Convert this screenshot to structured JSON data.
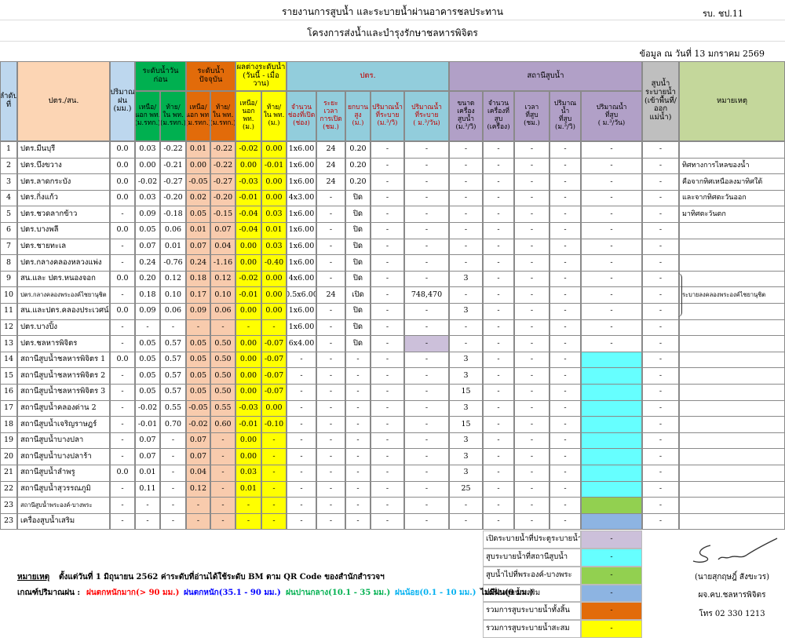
{
  "header": {
    "title": "รายงานการสูบน้ำ และระบายน้ำผ่านอาคารชลประทาน",
    "form_code": "รบ. ชป.11",
    "subtitle": "โครงการส่งน้ำและบำรุงรักษาชลหารพิจิตร",
    "date": "ข้อมูล ณ วันที่ 13 มกราคม 2569"
  },
  "table": {
    "header": [
      {
        "label": "ลำดับ\nที่"
      },
      {
        "label": "ปตร./สน."
      },
      {
        "label": "ปริมาณ\nฝน\n(มม.)"
      },
      {
        "label": "ระดับน้ำวันก่อน",
        "columns": [
          "เหนือ/\nนอก พท.\n(ม.รทก.)",
          "ท้าย/\nใน พท.\n(ม.รทก.)"
        ]
      },
      {
        "label": "ระดับน้ำปัจจุบัน",
        "columns": [
          "เหนือ/\nนอก พท.\n(ม.รทก.)",
          "ท้าย/\nใน พท.\n(ม.รทก.)"
        ]
      },
      {
        "label": "ผลต่างระดับน้ำ\n(วันนี้ - เมื่อวาน)",
        "columns": [
          "เหนือ/\nนอก พท.\n(ม.)",
          "ท้าย/\nใน พท.\n(ม.)"
        ]
      },
      {
        "label": "ปตร.",
        "columns": [
          "จำนวน\nช่องที่เปิด\n(ช่อง)",
          "ระยะเวลา\nการเปิด\n(ชม.)",
          "ยกบาน\nสูง\n(ม.)",
          "ปริมาณน้ำ\nที่ระบาย\n(ม.³/วิ)",
          "ปริมาณน้ำ\nที่ระบาย\n( ม.³/วัน)"
        ]
      },
      {
        "label": "สถานีสูบน้ำ",
        "columns": [
          "ขนาดเครื่อง\nสูบน้ำ\n(ม.³/วิ)",
          "จำนวน\nเครื่องที่สูบ\n(เครื่อง)",
          "เวลา\nที่สูบ\n(ชม.)",
          "ปริมาณน้ำ\nที่สูบ\n(ม.³/วิ)",
          "ปริมาณน้ำ\nที่สูบ\n( ม.³/วัน)"
        ]
      },
      {
        "label": "สูบน้ำ\nระบายน้ำ\n(เข้าพื้นที่/\nออกแม่น้ำ)"
      },
      {
        "label": "หมายเหตุ"
      }
    ],
    "rows": [
      [
        "1",
        "ปตร.มีนบุรี",
        "0.0",
        "0.03",
        "-0.22",
        "0.01",
        "-0.22",
        "-0.02",
        "0.00",
        "1x6.00",
        "24",
        "0.20",
        "-",
        "-",
        "-",
        "-",
        "-",
        "-",
        "-",
        "-",
        null
      ],
      [
        "2",
        "ปตร.บึงขวาง",
        "0.0",
        "0.00",
        "-0.21",
        "0.00",
        "-0.22",
        "0.00",
        "-0.01",
        "1x6.00",
        "24",
        "0.20",
        "-",
        "-",
        "-",
        "-",
        "-",
        "-",
        "-",
        "-",
        "ทิศทางการไหลของน้ำ"
      ],
      [
        "3",
        "ปตร.ลาดกระบัง",
        "0.0",
        "-0.02",
        "-0.27",
        "-0.05",
        "-0.27",
        "-0.03",
        "0.00",
        "1x6.00",
        "24",
        "0.20",
        "-",
        "-",
        "-",
        "-",
        "-",
        "-",
        "-",
        "-",
        "คือจากทิศเหนือลงมาทิศใต้"
      ],
      [
        "4",
        "ปตร.กิ่งแก้ว",
        "0.0",
        "0.03",
        "-0.20",
        "0.02",
        "-0.20",
        "-0.01",
        "0.00",
        "4x3.00",
        "-",
        "ปิด",
        "-",
        "-",
        "-",
        "-",
        "-",
        "-",
        "-",
        "-",
        "และจากทิศตะวันออก"
      ],
      [
        "5",
        "ปตร.ชวดลากข้าว",
        "-",
        "0.09",
        "-0.18",
        "0.05",
        "-0.15",
        "-0.04",
        "0.03",
        "1x6.00",
        "-",
        "ปิด",
        "-",
        "-",
        "-",
        "-",
        "-",
        "-",
        "-",
        "-",
        "มาทิศตะวันตก"
      ],
      [
        "6",
        "ปตร.บางพลี",
        "0.0",
        "0.05",
        "0.06",
        "0.01",
        "0.07",
        "-0.04",
        "0.01",
        "1x6.00",
        "-",
        "ปิด",
        "-",
        "-",
        "-",
        "-",
        "-",
        "-",
        "-",
        "-",
        null
      ],
      [
        "7",
        "ปตร.ชายทะเล",
        "-",
        "0.07",
        "0.01",
        "0.07",
        "0.04",
        "0.00",
        "0.03",
        "1x6.00",
        "-",
        "ปิด",
        "-",
        "-",
        "-",
        "-",
        "-",
        "-",
        "-",
        "-",
        null
      ],
      [
        "8",
        "ปตร.กลางคลองหลวงแพ่ง",
        "-",
        "0.24",
        "-0.76",
        "0.24",
        "-1.16",
        "0.00",
        "-0.40",
        "1x6.00",
        "-",
        "ปิด",
        "-",
        "-",
        "-",
        "-",
        "-",
        "-",
        "-",
        "-",
        null
      ],
      [
        "9",
        "สน.และ ปตร.หนองจอก",
        "0.0",
        "0.20",
        "0.12",
        "0.18",
        "0.12",
        "-0.02",
        "0.00",
        "4x6.00",
        "-",
        "ปิด",
        "-",
        "-",
        "3",
        "-",
        "-",
        "-",
        "-",
        "-",
        null
      ],
      [
        "10",
        "ปตร.กลางคลองพระองค์ไชยานุชิต",
        "-",
        "0.18",
        "0.10",
        "0.17",
        "0.10",
        "-0.01",
        "0.00",
        "0.5x6.00",
        "24",
        "เปิด",
        "-",
        "748,470",
        "-",
        "-",
        "-",
        "-",
        "-",
        "-",
        "ระบายลงคลองพระองค์ไชยานุชิต"
      ],
      [
        "11",
        "สน.และปตร.คลองประเวศน์ฯ",
        "0.0",
        "0.09",
        "0.06",
        "0.09",
        "0.06",
        "0.00",
        "0.00",
        "1x6.00",
        "-",
        "ปิด",
        "-",
        "-",
        "3",
        "-",
        "-",
        "-",
        "-",
        "-",
        null
      ],
      [
        "12",
        "ปตร.บางปิ้ง",
        "-",
        "-",
        "-",
        "-",
        "-",
        "-",
        "-",
        "1x6.00",
        "-",
        "ปิด",
        "-",
        "-",
        "-",
        "-",
        "-",
        "-",
        "-",
        "-",
        null
      ],
      [
        "13",
        "ปตร.ชลหารพิจิตร",
        "-",
        "0.05",
        "0.57",
        "0.05",
        "0.50",
        "0.00",
        "-0.07",
        "6x4.00",
        "-",
        "ปิด",
        "-",
        "-",
        "-",
        "-",
        "-",
        "-",
        "-",
        "-",
        null
      ],
      [
        "14",
        "สถานีสูบน้ำชลหารพิจิตร 1",
        "0.0",
        "0.05",
        "0.57",
        "0.05",
        "0.50",
        "0.00",
        "-0.07",
        "-",
        "-",
        "-",
        "-",
        "-",
        "3",
        "-",
        "-",
        "-",
        null,
        "-",
        null
      ],
      [
        "15",
        "สถานีสูบน้ำชลหารพิจิตร 2",
        "-",
        "0.05",
        "0.57",
        "0.05",
        "0.50",
        "0.00",
        "-0.07",
        "-",
        "-",
        "-",
        "-",
        "-",
        "3",
        "-",
        "-",
        "-",
        null,
        "-",
        null
      ],
      [
        "16",
        "สถานีสูบน้ำชลหารพิจิตร 3",
        "-",
        "0.05",
        "0.57",
        "0.05",
        "0.50",
        "0.00",
        "-0.07",
        "-",
        "-",
        "-",
        "-",
        "-",
        "15",
        "-",
        "-",
        "-",
        null,
        "-",
        null
      ],
      [
        "17",
        "สถานีสูบน้ำคลองด่าน 2",
        "-",
        "-0.02",
        "0.55",
        "-0.05",
        "0.55",
        "-0.03",
        "0.00",
        "-",
        "-",
        "-",
        "-",
        "-",
        "3",
        "-",
        "-",
        "-",
        null,
        "-",
        null
      ],
      [
        "18",
        "สถานีสูบน้ำเจริญราษฎร์",
        "-",
        "-0.01",
        "0.70",
        "-0.02",
        "0.60",
        "-0.01",
        "-0.10",
        "-",
        "-",
        "-",
        "-",
        "-",
        "15",
        "-",
        "-",
        "-",
        null,
        "-",
        null
      ],
      [
        "19",
        "สถานีสูบน้ำบางปลา",
        "-",
        "0.07",
        "-",
        "0.07",
        "-",
        "0.00",
        "-",
        "-",
        "-",
        "-",
        "-",
        "-",
        "3",
        "-",
        "-",
        "-",
        null,
        "-",
        null
      ],
      [
        "20",
        "สถานีสูบน้ำบางปลาร้า",
        "-",
        "0.07",
        "-",
        "0.07",
        "-",
        "0.00",
        "-",
        "-",
        "-",
        "-",
        "-",
        "-",
        "3",
        "-",
        "-",
        "-",
        null,
        "-",
        null
      ],
      [
        "21",
        "สถานีสูบน้ำลำพรู",
        "0.0",
        "0.01",
        "-",
        "0.04",
        "-",
        "0.03",
        "-",
        "-",
        "-",
        "-",
        "-",
        "-",
        "3",
        "-",
        "-",
        "-",
        null,
        "-",
        null
      ],
      [
        "22",
        "สถานีสูบน้ำสุวรรณภูมิ",
        "-",
        "0.11",
        "-",
        "0.12",
        "-",
        "0.01",
        "-",
        "-",
        "-",
        "-",
        "-",
        "-",
        "25",
        "-",
        "-",
        "-",
        null,
        "-",
        null
      ],
      [
        "23",
        "สถานีสูบน้ำพระองค์-บางพระ",
        "-",
        "-",
        "-",
        "-",
        "-",
        "-",
        "-",
        "-",
        "-",
        "-",
        "-",
        "-",
        "-",
        "-",
        "-",
        "-",
        null,
        "-",
        null
      ],
      [
        "23",
        "เครื่องสูบน้ำเสริม",
        "-",
        "-",
        "-",
        "-",
        "-",
        "-",
        "-",
        "-",
        "-",
        "-",
        "-",
        "-",
        "-",
        "-",
        "-",
        "-",
        null,
        "-",
        null
      ]
    ]
  },
  "legend": [
    {
      "label": "เปิดระบายน้ำที่ประตูระบายน้ำ",
      "value": "-",
      "color": "#ccc0da"
    },
    {
      "label": "สูบระบายน้ำที่สถานีสูบน้ำ",
      "value": "-",
      "color": "#66ffff"
    },
    {
      "label": "สูบน้ำไปที่พระองค์-บางพระ",
      "value": "-",
      "color": "#92d050"
    },
    {
      "label": "เครื่องสูบน้ำเสริม",
      "value": "-",
      "color": "#8db4e2"
    },
    {
      "label": "รวมการสูบระบายน้ำทั้งสิ้น",
      "value": "-",
      "color": "#e26b0a"
    },
    {
      "label": "รวมการสูบระบายน้ำสะสม",
      "value": "-",
      "color": "#ffff00"
    }
  ],
  "remark": {
    "label": "หมายเหตุ",
    "text": "ตั้งแต่วันที่ 1 มิถุนายน 2562 ค่าระดับที่อ่านได้ใช้ระดับ BM ตาม QR Code ของสำนักสำรวจฯ"
  },
  "rain_criteria": {
    "label": "เกณฑ์ปริมาณฝน :",
    "levels": [
      {
        "text": "ฝนตกหนักมาก(> 90 มม.)",
        "color": "#ff0000"
      },
      {
        "text": "ฝนตกหนัก(35.1 - 90 มม.)",
        "color": "#0000ff"
      },
      {
        "text": "ฝนปานกลาง(10.1 - 35 มม.)",
        "color": "#00b050"
      },
      {
        "text": "ฝนน้อย(0.1 - 10 มม.)",
        "color": "#00b0f0"
      },
      {
        "text": "ไม่มีฝน(0 มม.)",
        "color": "#000000"
      }
    ]
  },
  "signature": {
    "name": "(นายสุกฤษฎิ์ สังขะวร)",
    "position": "ผจ.คบ.ชลหารพิจิตร",
    "phone": "โทร 02 330 1213"
  }
}
